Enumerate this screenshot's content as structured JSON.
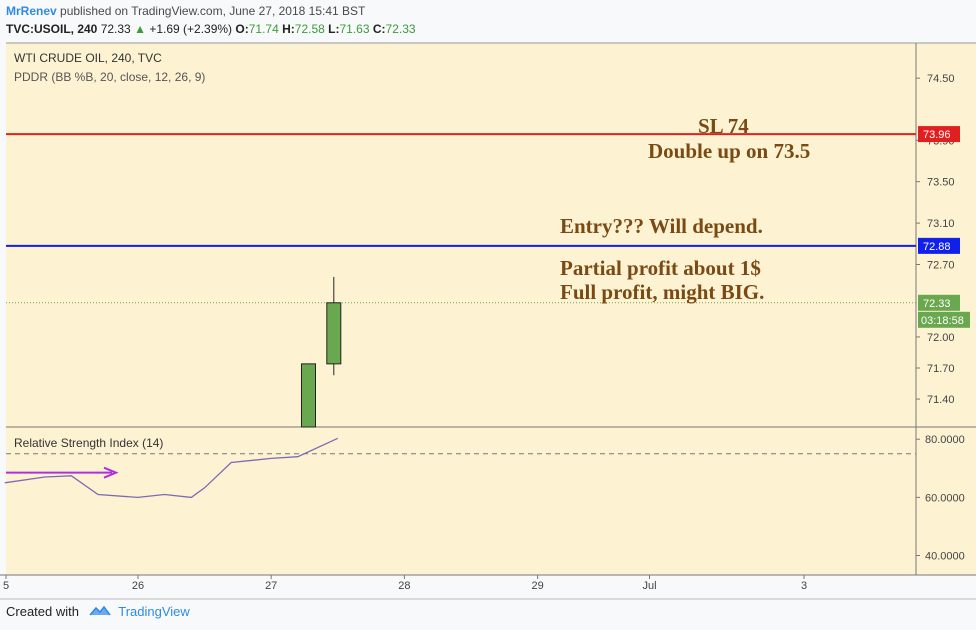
{
  "header": {
    "author": "MrRenev",
    "published_text": "published on TradingView.com, June 27, 2018 15:41 BST",
    "symbol": "TVC:USOIL, 240",
    "last": "72.33",
    "change": "+1.69 (+2.39%)",
    "open_label": "O:",
    "open": "71.74",
    "high_label": "H:",
    "high": "72.58",
    "low_label": "L:",
    "low": "71.63",
    "close_label": "C:",
    "close": "72.33"
  },
  "footer": {
    "created_with": "Created with",
    "brand": "TradingView"
  },
  "colors": {
    "chart_bg": "#fdf3d3",
    "candle_up": "#6aa84f",
    "sl_line": "#e02020",
    "entry_line": "#1020e8",
    "annotation": "#7a4a14",
    "rsi_line": "#7b6bb5",
    "arrow": "#b030d8",
    "price_tag_green": "#6aa84f"
  },
  "chart_data": [
    {
      "type": "candlestick",
      "title": "WTI CRUDE OIL, 240, TVC",
      "indicator": "PDDR (BB %B, 20, close, 12, 26, 9)",
      "ylim": [
        71.13,
        74.84
      ],
      "y_ticks": [
        "74.50",
        "73.90",
        "73.50",
        "73.10",
        "72.70",
        "72.00",
        "71.70",
        "71.40"
      ],
      "x_ticks": [
        "5",
        "26",
        "27",
        "28",
        "29",
        "Jul",
        "3"
      ],
      "candles": [
        {
          "x": 27.28,
          "open": 71.05,
          "close": 71.74,
          "high": 71.74,
          "low": 71.05
        },
        {
          "x": 27.47,
          "open": 71.74,
          "close": 72.33,
          "high": 72.58,
          "low": 71.63
        }
      ],
      "horizontal_lines": [
        {
          "label": "73.96",
          "value": 73.96,
          "style": "solid",
          "color": "#e02020"
        },
        {
          "label": "72.88",
          "value": 72.88,
          "style": "solid",
          "color": "#1020e8"
        },
        {
          "label": "72.33",
          "value": 72.33,
          "style": "dotted",
          "color": "#6aa84f"
        }
      ],
      "countdown": "03:18:58",
      "annotations": [
        "SL 74",
        "Double up on 73.5",
        "Entry??? Will depend.",
        "Partial profit about 1$",
        "Full profit, might BIG."
      ]
    },
    {
      "type": "line",
      "title": "Relative Strength Index (14)",
      "ylim": [
        33.3,
        84.2
      ],
      "y_ticks": [
        "80.0000",
        "60.0000",
        "40.0000"
      ],
      "overbought": 75,
      "series": [
        {
          "x": [
            25.0,
            25.3,
            25.5,
            25.7,
            26.0,
            26.2,
            26.4,
            26.5,
            26.7,
            27.0,
            27.2,
            27.5
          ],
          "values": [
            65,
            67,
            67.4,
            61,
            60,
            61,
            60,
            63.3,
            72,
            73.4,
            74,
            80.3
          ]
        }
      ]
    }
  ]
}
